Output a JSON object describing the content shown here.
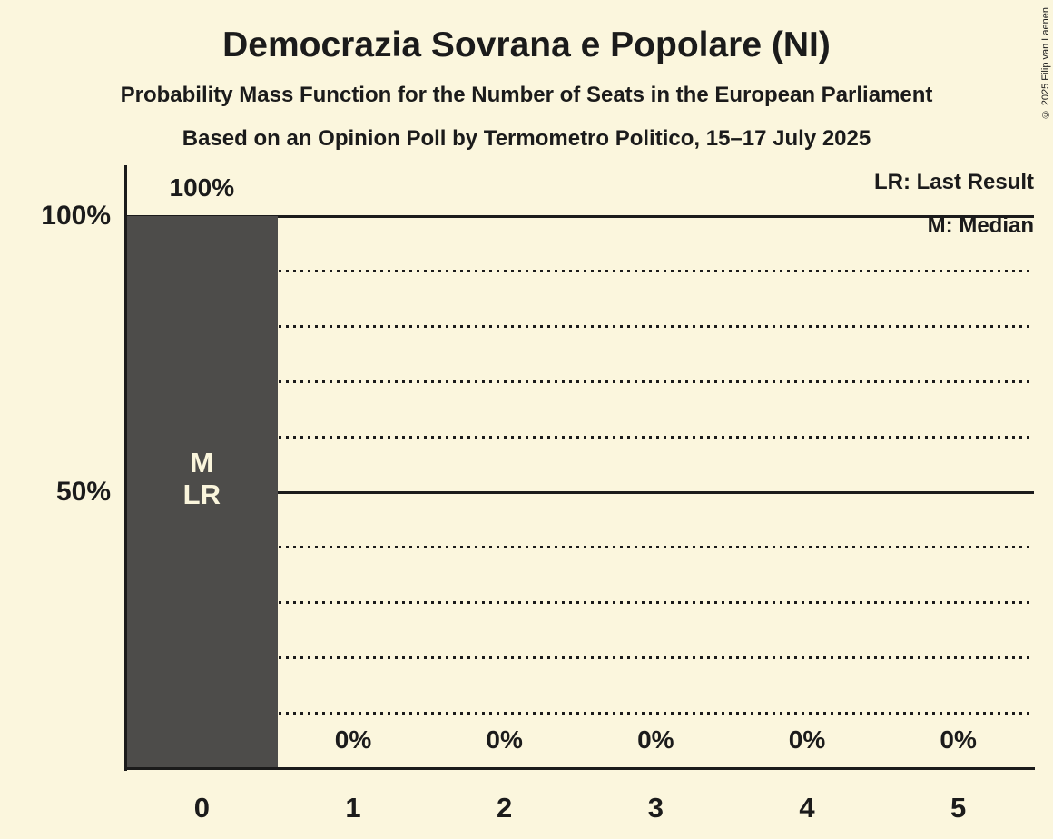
{
  "header": {
    "title": "Democrazia Sovrana e Popolare (NI)",
    "subtitle": "Probability Mass Function for the Number of Seats in the European Parliament",
    "source_line": "Based on an Opinion Poll by Termometro Politico, 15–17 July 2025"
  },
  "legend": {
    "last_result": "LR: Last Result",
    "median": "M: Median"
  },
  "footer": {
    "copyright": "© 2025 Filip van Laenen"
  },
  "colors": {
    "background": "#FBF6DD",
    "bar": "#4D4C4A",
    "text": "#1B1B1B",
    "bar_text": "#FAF5DC"
  },
  "chart_data": {
    "type": "bar",
    "title": "Democrazia Sovrana e Popolare (NI)",
    "categories": [
      "0",
      "1",
      "2",
      "3",
      "4",
      "5"
    ],
    "values": [
      100,
      0,
      0,
      0,
      0,
      0
    ],
    "bar_value_labels": [
      "100%",
      "0%",
      "0%",
      "0%",
      "0%",
      "0%"
    ],
    "ylim": [
      0,
      100
    ],
    "y_ticks": [
      {
        "value": 100,
        "label": "100%"
      },
      {
        "value": 50,
        "label": "50%"
      }
    ],
    "solid_gridlines": [
      100,
      50
    ],
    "dotted_gridlines": [
      90,
      80,
      70,
      60,
      40,
      30,
      20,
      10
    ],
    "annotations": [
      {
        "category": "0",
        "lines": [
          "M",
          "LR"
        ]
      }
    ],
    "legend_position": "top-right",
    "grid": "horizontal"
  }
}
